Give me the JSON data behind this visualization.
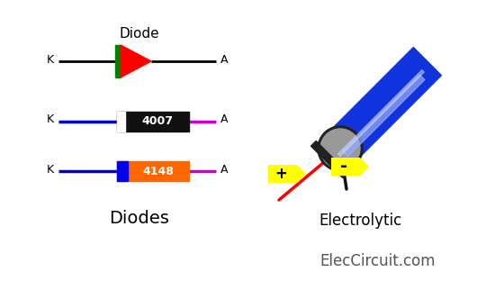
{
  "bg_color": "#ffffff",
  "title_text": "ElecCircuit.com",
  "diode_label": "Diode",
  "diodes_label": "Diodes",
  "electrolytic_label": "Electrolytic",
  "wire_color_blue": "#0000cc",
  "wire_color_magenta": "#cc00cc",
  "wire_color_black": "#000000",
  "body_4007_color": "#111111",
  "body_4007_stripe": "#ffffff",
  "body_4148_color": "#ff6600",
  "body_4148_stripe": "#0000ee",
  "cap_body_color": "#1133dd",
  "cap_base_color": "#999999",
  "cap_ring_color": "#222222",
  "cap_shine_color": "#aabbff",
  "lead_plus_color": "#ff0000",
  "lead_minus_color": "#111111",
  "plus_label_bg": "#ffff00",
  "minus_label_bg": "#ffff00",
  "font_size_ka": 9,
  "font_size_body_text": 8,
  "font_size_title": 12
}
